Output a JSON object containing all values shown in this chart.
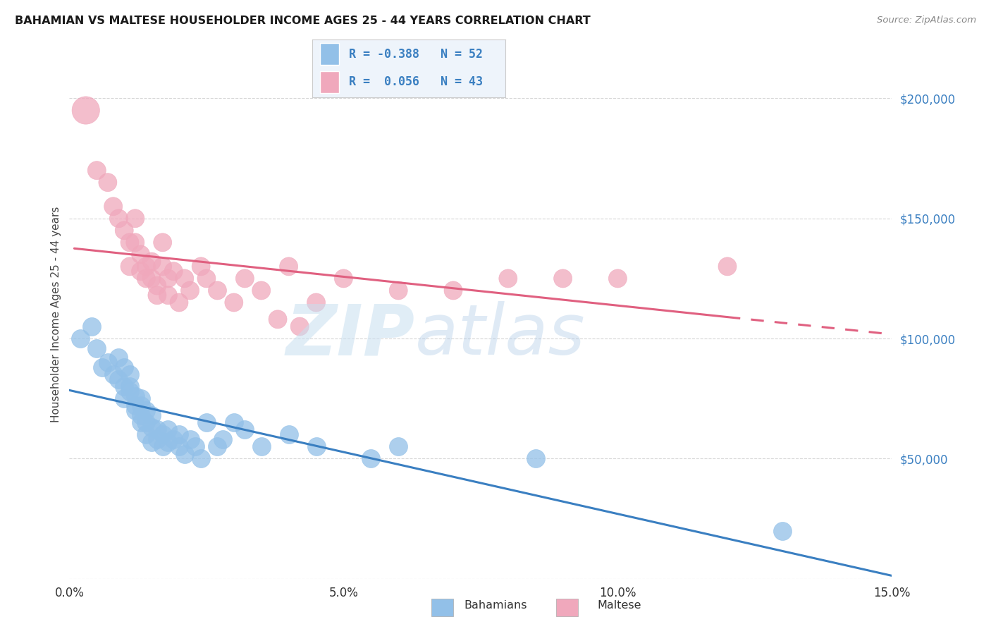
{
  "title": "BAHAMIAN VS MALTESE HOUSEHOLDER INCOME AGES 25 - 44 YEARS CORRELATION CHART",
  "source": "Source: ZipAtlas.com",
  "ylabel": "Householder Income Ages 25 - 44 years",
  "bahamian_R": -0.388,
  "bahamian_N": 52,
  "maltese_R": 0.056,
  "maltese_N": 43,
  "xlim": [
    0.0,
    0.15
  ],
  "ylim": [
    0,
    220000
  ],
  "yticks": [
    0,
    50000,
    100000,
    150000,
    200000
  ],
  "ytick_labels": [
    "",
    "$50,000",
    "$100,000",
    "$150,000",
    "$200,000"
  ],
  "xtick_labels": [
    "0.0%",
    "5.0%",
    "10.0%",
    "15.0%"
  ],
  "xticks": [
    0.0,
    0.05,
    0.1,
    0.15
  ],
  "bahamian_color": "#92c0e8",
  "maltese_color": "#f0a8bc",
  "bahamian_line_color": "#3a7fc1",
  "maltese_line_color": "#e06080",
  "bahamian_x": [
    0.002,
    0.004,
    0.005,
    0.006,
    0.007,
    0.008,
    0.009,
    0.009,
    0.01,
    0.01,
    0.01,
    0.011,
    0.011,
    0.011,
    0.012,
    0.012,
    0.012,
    0.013,
    0.013,
    0.013,
    0.013,
    0.014,
    0.014,
    0.014,
    0.015,
    0.015,
    0.015,
    0.016,
    0.016,
    0.017,
    0.017,
    0.018,
    0.018,
    0.019,
    0.02,
    0.02,
    0.021,
    0.022,
    0.023,
    0.024,
    0.025,
    0.027,
    0.028,
    0.03,
    0.032,
    0.035,
    0.04,
    0.045,
    0.055,
    0.06,
    0.085,
    0.13
  ],
  "bahamian_y": [
    100000,
    105000,
    96000,
    88000,
    90000,
    85000,
    92000,
    83000,
    88000,
    80000,
    75000,
    80000,
    85000,
    78000,
    72000,
    76000,
    70000,
    72000,
    68000,
    65000,
    75000,
    70000,
    65000,
    60000,
    68000,
    63000,
    57000,
    62000,
    58000,
    60000,
    55000,
    62000,
    57000,
    58000,
    60000,
    55000,
    52000,
    58000,
    55000,
    50000,
    65000,
    55000,
    58000,
    65000,
    62000,
    55000,
    60000,
    55000,
    50000,
    55000,
    50000,
    20000
  ],
  "maltese_x": [
    0.003,
    0.005,
    0.007,
    0.008,
    0.009,
    0.01,
    0.011,
    0.011,
    0.012,
    0.012,
    0.013,
    0.013,
    0.014,
    0.014,
    0.015,
    0.015,
    0.016,
    0.016,
    0.017,
    0.017,
    0.018,
    0.018,
    0.019,
    0.02,
    0.021,
    0.022,
    0.024,
    0.025,
    0.027,
    0.03,
    0.032,
    0.035,
    0.038,
    0.04,
    0.042,
    0.045,
    0.05,
    0.06,
    0.07,
    0.08,
    0.09,
    0.1,
    0.12
  ],
  "maltese_y": [
    195000,
    170000,
    165000,
    155000,
    150000,
    145000,
    140000,
    130000,
    150000,
    140000,
    135000,
    128000,
    130000,
    125000,
    132000,
    125000,
    122000,
    118000,
    140000,
    130000,
    125000,
    118000,
    128000,
    115000,
    125000,
    120000,
    130000,
    125000,
    120000,
    115000,
    125000,
    120000,
    108000,
    130000,
    105000,
    115000,
    125000,
    120000,
    120000,
    125000,
    125000,
    125000,
    130000
  ],
  "maltese_big_idx": 0,
  "maltese_big_size": 800,
  "dot_size": 350
}
